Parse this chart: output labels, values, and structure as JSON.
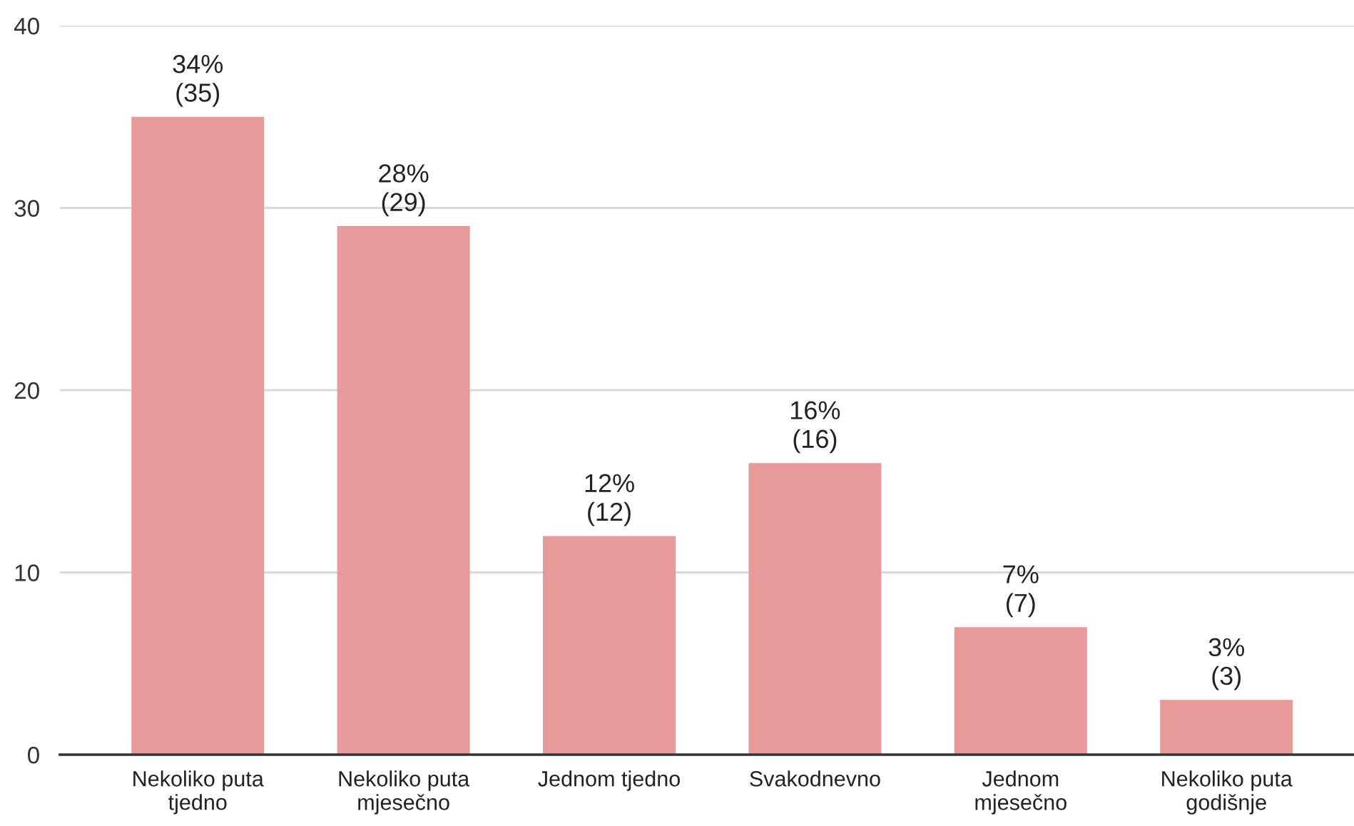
{
  "chart_data": {
    "type": "bar",
    "categories": [
      "Nekoliko puta\ntjedno",
      "Nekoliko puta\nmjesečno",
      "Jednom tjedno",
      "Svakodnevno",
      "Jednom\nmjesečno",
      "Nekoliko puta\ngodišnje"
    ],
    "values": [
      35,
      29,
      12,
      16,
      7,
      3
    ],
    "value_labels": [
      "34%\n(35)",
      "28%\n(29)",
      "12%\n(12)",
      "16%\n(16)",
      "7%\n(7)",
      "3%\n(3)"
    ],
    "color": "#e8999a",
    "ylim": [
      0,
      40
    ],
    "yticks": [
      0,
      10,
      20,
      30,
      40
    ],
    "grid": "y"
  }
}
